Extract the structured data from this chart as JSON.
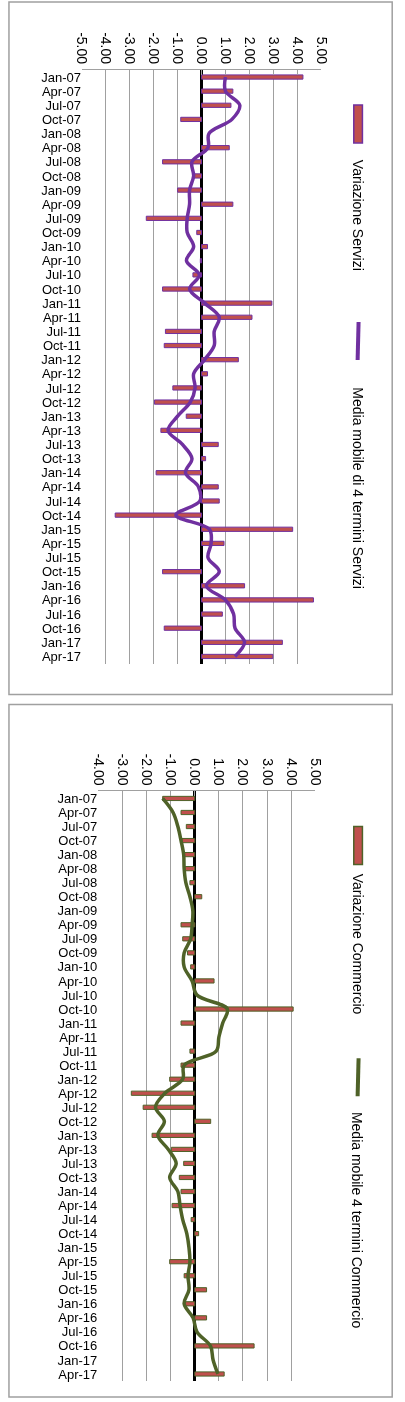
{
  "chart_data": [
    {
      "type": "bar",
      "orientation": "horizontal",
      "legend": "right",
      "grid": "x",
      "categories": [
        "Jan-07",
        "Apr-07",
        "Jul-07",
        "Oct-07",
        "Jan-08",
        "Apr-08",
        "Jul-08",
        "Oct-08",
        "Jan-09",
        "Apr-09",
        "Jul-09",
        "Oct-09",
        "Jan-10",
        "Apr-10",
        "Jul-10",
        "Oct-10",
        "Jan-11",
        "Apr-11",
        "Jul-11",
        "Oct-11",
        "Jan-12",
        "Apr-12",
        "Jul-12",
        "Oct-12",
        "Jan-13",
        "Apr-13",
        "Jul-13",
        "Oct-13",
        "Jan-14",
        "Apr-14",
        "Jul-14",
        "Oct-14",
        "Jan-15",
        "Apr-15",
        "Jul-15",
        "Oct-15",
        "Jan-16",
        "Apr-16",
        "Jul-16",
        "Oct-16",
        "Jan-17",
        "Apr-17"
      ],
      "xlim": [
        -5,
        5
      ],
      "xticks": [
        {
          "value": -5,
          "label": "-5.00"
        },
        {
          "value": -4,
          "label": "-4.00"
        },
        {
          "value": -3,
          "label": "-3.00"
        },
        {
          "value": -2,
          "label": "-2.00"
        },
        {
          "value": -1,
          "label": "-1.00"
        },
        {
          "value": 0,
          "label": "0.00"
        },
        {
          "value": 1,
          "label": "1.00"
        },
        {
          "value": 2,
          "label": "2.00"
        },
        {
          "value": 3,
          "label": "3.00"
        },
        {
          "value": 4,
          "label": "4.00"
        },
        {
          "value": 5,
          "label": "5.00"
        }
      ],
      "series": [
        {
          "name": "Variazione Servizi",
          "color": "#c0504d",
          "values": [
            4.24,
            1.31,
            1.23,
            -0.87,
            0,
            1.16,
            -1.63,
            -0.36,
            -1.0,
            1.31,
            -2.31,
            -0.2,
            0.25,
            -0.05,
            -0.36,
            -1.63,
            2.94,
            2.11,
            -1.51,
            -1.56,
            1.54,
            0.25,
            -1.2,
            -1.97,
            -0.64,
            -1.7,
            0.7,
            0.17,
            -1.9,
            0.7,
            0.74,
            -3.61,
            3.81,
            0.94,
            0,
            -1.63,
            1.8,
            4.68,
            0.87,
            -1.56,
            3.38,
            2.98
          ]
        },
        {
          "name": "Media mobile di 4 termini Servizi",
          "type": "line",
          "color": "#7030a0",
          "values": [
            1.0,
            1.0,
            1.6,
            1.27,
            0.31,
            0.27,
            -0.4,
            -0.33,
            -0.5,
            -0.5,
            -0.6,
            -0.6,
            -0.33,
            -0.63,
            -0.09,
            -0.5,
            0.13,
            0.74,
            0.53,
            0.53,
            0.13,
            -0.33,
            -0.27,
            -0.47,
            -1.0,
            -1.4,
            -0.8,
            -0.4,
            -0.67,
            -0.13,
            -0.07,
            -1.07,
            0.33,
            0.4,
            0.27,
            0.74,
            0.2,
            1.0,
            1.34,
            1.4,
            1.8,
            1.4
          ]
        }
      ]
    },
    {
      "type": "bar",
      "orientation": "horizontal",
      "legend": "right",
      "grid": "x",
      "categories": [
        "Jan-07",
        "Apr-07",
        "Jul-07",
        "Oct-07",
        "Jan-08",
        "Apr-08",
        "Jul-08",
        "Oct-08",
        "Jan-09",
        "Apr-09",
        "Jul-09",
        "Oct-09",
        "Jan-10",
        "Apr-10",
        "Jul-10",
        "Oct-10",
        "Jan-11",
        "Apr-11",
        "Jul-11",
        "Oct-11",
        "Jan-12",
        "Apr-12",
        "Jul-12",
        "Oct-12",
        "Jan-13",
        "Apr-13",
        "Jul-13",
        "Oct-13",
        "Jan-14",
        "Apr-14",
        "Jul-14",
        "Oct-14",
        "Jan-15",
        "Apr-15",
        "Jul-15",
        "Oct-15",
        "Jan-16",
        "Apr-16",
        "Jul-16",
        "Oct-16",
        "Jan-17",
        "Apr-17"
      ],
      "xlim": [
        -4,
        5
      ],
      "xticks": [
        {
          "value": -4,
          "label": "-4.00"
        },
        {
          "value": -3,
          "label": "-3.00"
        },
        {
          "value": -2,
          "label": "-2.00"
        },
        {
          "value": -1,
          "label": "-1.00"
        },
        {
          "value": 0,
          "label": "0.00"
        },
        {
          "value": 1,
          "label": "1.00"
        },
        {
          "value": 2,
          "label": "2.00"
        },
        {
          "value": 3,
          "label": "3.00"
        },
        {
          "value": 4,
          "label": "4.00"
        },
        {
          "value": 5,
          "label": "5.00"
        }
      ],
      "series": [
        {
          "name": "Variazione Commercio",
          "color": "#c0504d",
          "values": [
            -1.33,
            -0.57,
            -0.35,
            -0.53,
            -0.44,
            -0.46,
            -0.2,
            0.29,
            0,
            -0.57,
            -0.5,
            -0.3,
            -0.17,
            0.8,
            0,
            4.08,
            -0.57,
            0,
            -0.2,
            -0.57,
            -1.04,
            -2.63,
            -2.14,
            0.66,
            -1.77,
            -0.97,
            -0.46,
            -0.64,
            -0.57,
            -0.94,
            -0.15,
            0.16,
            0,
            -1.04,
            -0.44,
            0.49,
            -0.46,
            0.49,
            0,
            2.46,
            0,
            1.22
          ]
        },
        {
          "name": "Media mobile 4 termini Commercio",
          "type": "line",
          "color": "#4f6228",
          "values": [
            -1.33,
            -0.9,
            -0.7,
            -0.57,
            -0.46,
            -0.44,
            -0.37,
            -0.2,
            -0.08,
            -0.11,
            -0.17,
            -0.44,
            -0.44,
            -0.11,
            0.09,
            1.35,
            1.16,
            1.0,
            0.89,
            -0.44,
            -0.5,
            -1.24,
            -1.63,
            -1.26,
            -1.53,
            -1.1,
            -0.77,
            -1.04,
            -0.7,
            -0.61,
            -0.5,
            -0.33,
            -0.24,
            -0.2,
            -0.28,
            -0.24,
            -0.44,
            -0.07,
            0.09,
            0.65,
            0.76,
            0.96
          ]
        }
      ]
    }
  ]
}
